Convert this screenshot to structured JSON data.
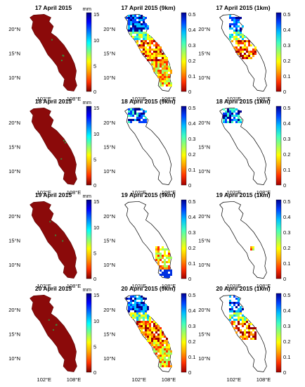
{
  "chart_data": [
    {
      "type": "heatmap",
      "title": "17 April 2015",
      "unit": "mm",
      "cbar_ticks": [
        "0",
        "5",
        "10",
        "15"
      ],
      "x_ticks": [
        "102°E",
        "108°E"
      ],
      "y_ticks": [
        "20°N",
        "15°N",
        "10°N"
      ],
      "style": "precip"
    },
    {
      "type": "heatmap",
      "title": "17 April 2015 (9km)",
      "cbar_ticks": [
        "0",
        "0.1",
        "0.2",
        "0.3",
        "0.4",
        "0.5"
      ],
      "x_ticks": [
        "102°E",
        "108°E"
      ],
      "y_ticks": [
        "20°N",
        "15°N",
        "10°N"
      ],
      "style": "sm_full"
    },
    {
      "type": "heatmap",
      "title": "17 April 2015 (1km)",
      "cbar_ticks": [
        "0",
        "0.1",
        "0.2",
        "0.3",
        "0.4",
        "0.5"
      ],
      "x_ticks": [
        "102°E",
        "108°E"
      ],
      "y_ticks": [
        "20°N",
        "15°N",
        "10°N"
      ],
      "style": "sm_partial"
    },
    {
      "type": "heatmap",
      "title": "18 April 2015",
      "unit": "mm",
      "cbar_ticks": [
        "0",
        "5",
        "10",
        "15"
      ],
      "x_ticks": [
        "102°E",
        "108°E"
      ],
      "y_ticks": [
        "20°N",
        "15°N",
        "10°N"
      ],
      "style": "precip"
    },
    {
      "type": "heatmap",
      "title": "18 April 2015 (9km)",
      "cbar_ticks": [
        "0",
        "0.1",
        "0.2",
        "0.3",
        "0.4",
        "0.5"
      ],
      "x_ticks": [
        "102°E",
        "108°E"
      ],
      "y_ticks": [
        "20°N",
        "15°N",
        "10°N"
      ],
      "style": "sm_north"
    },
    {
      "type": "heatmap",
      "title": "18 April 2015 (1km)",
      "cbar_ticks": [
        "0",
        "0.1",
        "0.2",
        "0.3",
        "0.4",
        "0.5"
      ],
      "x_ticks": [
        "102°E",
        "108°E"
      ],
      "y_ticks": [
        "20°N",
        "15°N",
        "10°N"
      ],
      "style": "sm_north"
    },
    {
      "type": "heatmap",
      "title": "19 April 2015",
      "unit": "mm",
      "cbar_ticks": [
        "0",
        "5",
        "10",
        "15"
      ],
      "x_ticks": [
        "102°E",
        "108°E"
      ],
      "y_ticks": [
        "20°N",
        "15°N",
        "10°N"
      ],
      "style": "precip"
    },
    {
      "type": "heatmap",
      "title": "19 April 2015 (9km)",
      "cbar_ticks": [
        "0",
        "0.1",
        "0.2",
        "0.3",
        "0.4",
        "0.5"
      ],
      "x_ticks": [
        "102°E",
        "108°E"
      ],
      "y_ticks": [
        "20°N",
        "15°N",
        "10°N"
      ],
      "style": "sm_south"
    },
    {
      "type": "heatmap",
      "title": "19 April 2015 (1km)",
      "cbar_ticks": [
        "0",
        "0.1",
        "0.2",
        "0.3",
        "0.4",
        "0.5"
      ],
      "x_ticks": [
        "102°E",
        "108°E"
      ],
      "y_ticks": [
        "20°N",
        "15°N",
        "10°N"
      ],
      "style": "sm_empty"
    },
    {
      "type": "heatmap",
      "title": "20 April 2015",
      "unit": "mm",
      "cbar_ticks": [
        "0",
        "5",
        "10",
        "15"
      ],
      "x_ticks": [
        "102°E",
        "108°E"
      ],
      "y_ticks": [
        "20°N",
        "15°N",
        "10°N"
      ],
      "style": "precip"
    },
    {
      "type": "heatmap",
      "title": "20 April 2015 (9km)",
      "cbar_ticks": [
        "0",
        "0.1",
        "0.2",
        "0.3",
        "0.4",
        "0.5"
      ],
      "x_ticks": [
        "102°E",
        "108°E"
      ],
      "y_ticks": [
        "20°N",
        "15°N",
        "10°N"
      ],
      "style": "sm_full"
    },
    {
      "type": "heatmap",
      "title": "20 April 2015 (1km)",
      "cbar_ticks": [
        "0",
        "0.1",
        "0.2",
        "0.3",
        "0.4",
        "0.5"
      ],
      "x_ticks": [
        "102°E",
        "108°E"
      ],
      "y_ticks": [
        "20°N",
        "15°N",
        "10°N"
      ],
      "style": "sm_partial"
    }
  ],
  "colors": {
    "precip_low": "#8b0a0a",
    "basin_outline": "#000000",
    "sm_colormap": [
      "#a00000",
      "#ff3000",
      "#ffa000",
      "#ffff00",
      "#a0ff60",
      "#40ffc0",
      "#00c0ff",
      "#0040ff",
      "#000090"
    ],
    "precip_colormap": [
      "#800000",
      "#ff3000",
      "#ffa000",
      "#ffff00",
      "#80ff80",
      "#00ffff",
      "#0080ff",
      "#0000ff",
      "#000080"
    ]
  }
}
